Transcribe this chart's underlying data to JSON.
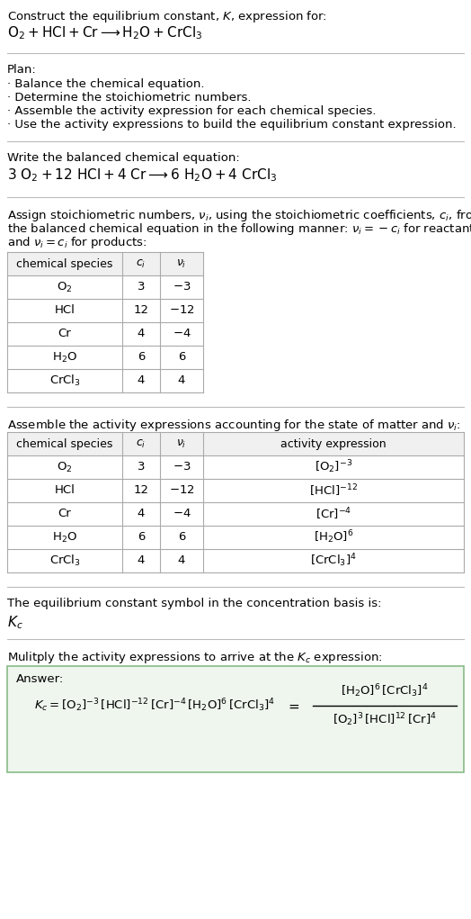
{
  "bg_color": "#ffffff",
  "text_color": "#000000",
  "plan_items": [
    "· Balance the chemical equation.",
    "· Determine the stoichiometric numbers.",
    "· Assemble the activity expression for each chemical species.",
    "· Use the activity expressions to build the equilibrium constant expression."
  ],
  "table1_rows": [
    [
      "$\\mathrm{O_2}$",
      "3",
      "$-3$"
    ],
    [
      "HCl",
      "12",
      "$-12$"
    ],
    [
      "Cr",
      "4",
      "$-4$"
    ],
    [
      "$\\mathrm{H_2O}$",
      "6",
      "6"
    ],
    [
      "$\\mathrm{CrCl_3}$",
      "4",
      "4"
    ]
  ],
  "table2_rows": [
    [
      "$\\mathrm{O_2}$",
      "3",
      "$-3$",
      "$[\\mathrm{O_2}]^{-3}$"
    ],
    [
      "HCl",
      "12",
      "$-12$",
      "$[\\mathrm{HCl}]^{-12}$"
    ],
    [
      "Cr",
      "4",
      "$-4$",
      "$[\\mathrm{Cr}]^{-4}$"
    ],
    [
      "$\\mathrm{H_2O}$",
      "6",
      "6",
      "$[\\mathrm{H_2O}]^{6}$"
    ],
    [
      "$\\mathrm{CrCl_3}$",
      "4",
      "4",
      "$[\\mathrm{CrCl_3}]^{4}$"
    ]
  ],
  "answer_box_color": "#eef6ee",
  "answer_box_border": "#88bb88",
  "table_header_bg": "#f0f0f0",
  "table_border": "#aaaaaa",
  "divider_color": "#bbbbbb"
}
